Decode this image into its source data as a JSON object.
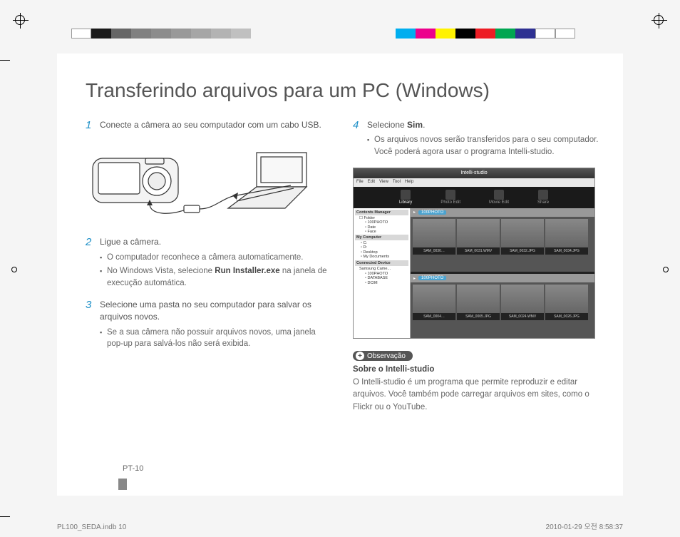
{
  "reg_bars": {
    "left_gray_widths": [
      28,
      28,
      28,
      28,
      28,
      28,
      28,
      28,
      28
    ],
    "left_gray_colors": [
      "#ffffff",
      "#1a1a1a",
      "#666666",
      "#808080",
      "#8c8c8c",
      "#999999",
      "#a6a6a6",
      "#b3b3b3",
      "#c0c0c0"
    ],
    "right_widths": [
      28,
      28,
      28,
      28,
      28,
      28,
      28,
      28,
      28
    ],
    "right_colors": [
      "#00aeef",
      "#ec008c",
      "#fff200",
      "#000000",
      "#ed1c24",
      "#00a651",
      "#2e3192",
      "#ffffff",
      "#ffffff"
    ]
  },
  "title": "Transferindo arquivos para um PC (Windows)",
  "step1": {
    "num": "1",
    "text": "Conecte a câmera ao seu computador com um cabo USB."
  },
  "step2": {
    "num": "2",
    "title": "Ligue a câmera.",
    "b1": "O computador reconhece a câmera automaticamente.",
    "b2_pre": "No Windows Vista, selecione ",
    "b2_bold": "Run Installer.exe",
    "b2_post": " na janela de execução automática."
  },
  "step3": {
    "num": "3",
    "title": "Selecione uma pasta no seu computador para salvar os arquivos novos.",
    "b1": "Se a sua câmera não possuir arquivos novos, uma janela pop-up para salvá-los não será exibida."
  },
  "step4": {
    "num": "4",
    "title_pre": "Selecione ",
    "title_bold": "Sim",
    "title_post": ".",
    "b1": "Os arquivos novos serão transferidos para o seu computador. Você poderá agora usar o programa Intelli-studio."
  },
  "screenshot": {
    "title": "Intelli-studio",
    "menu": [
      "File",
      "Edit",
      "View",
      "Tool",
      "Help"
    ],
    "tabs": [
      "Library",
      "Photo Edit",
      "Movie Edit",
      "Share"
    ],
    "side": {
      "hdr1": "Contents Manager",
      "folder_label": "Folder",
      "items1": [
        "100PHOTO",
        "Date",
        "Face"
      ],
      "hdr2": "My Computer",
      "items2": [
        "C:",
        "D:",
        "Desktop",
        "My Documents"
      ],
      "hdr3": "Connected Device",
      "cam": "Samsung Came...",
      "items3": [
        "100PHOTO",
        "DATABASE",
        "DCIM"
      ]
    },
    "path": "100PHOTO",
    "thumbs1": [
      "SAM_0030…",
      "SAM_0031.WMV",
      "SAM_0032.JPG",
      "SAM_0034.JPG"
    ],
    "thumbs2": [
      "SAM_0004…",
      "SAM_0005.JPG",
      "SAM_0024.WMV",
      "SAM_0026.JPG"
    ]
  },
  "note": {
    "badge": "Observação",
    "heading": "Sobre o Intelli-studio",
    "body": "O Intelli-studio é um programa que permite reproduzir e editar arquivos. Você também pode carregar arquivos em sites, como o Flickr ou o YouTube."
  },
  "page_num": "PT-10",
  "footer_left": "PL100_SEDA.indb   10",
  "footer_right": "2010-01-29   오전 8:58:37",
  "colors": {
    "step_num": "#1c8fc7",
    "text": "#555555",
    "badge_bg": "#555555"
  }
}
